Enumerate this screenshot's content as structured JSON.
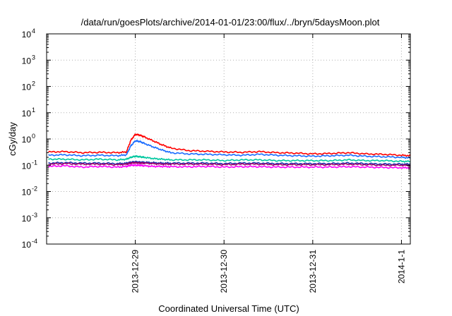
{
  "chart_data": {
    "type": "line",
    "title": "/data/run/goesPlots/archive/2014-01-01/23:00/flux/../bryn/5daysMoon.plot",
    "xlabel": "Coordinated Universal Time (UTC)",
    "ylabel": "cGy/day",
    "yscale": "log",
    "ylim": [
      0.0001,
      10000
    ],
    "xlim": [
      -1.0,
      3.1
    ],
    "grid": true,
    "x_ticks": [
      {
        "pos": 0,
        "label": "2013-12-29"
      },
      {
        "pos": 1,
        "label": "2013-12-30"
      },
      {
        "pos": 2,
        "label": "2013-12-31"
      },
      {
        "pos": 3,
        "label": "2014-1-1"
      }
    ],
    "y_ticks": [
      {
        "exp": -4,
        "base": "10",
        "sup": "-4"
      },
      {
        "exp": -3,
        "base": "10",
        "sup": "-3"
      },
      {
        "exp": -2,
        "base": "10",
        "sup": "-2"
      },
      {
        "exp": -1,
        "base": "10",
        "sup": "-1"
      },
      {
        "exp": 0,
        "base": "10",
        "sup": "0"
      },
      {
        "exp": 1,
        "base": "10",
        "sup": "1"
      },
      {
        "exp": 2,
        "base": "10",
        "sup": "2"
      },
      {
        "exp": 3,
        "base": "10",
        "sup": "3"
      },
      {
        "exp": 4,
        "base": "10",
        "sup": "4"
      }
    ],
    "x": [
      -0.98,
      -0.8,
      -0.6,
      -0.4,
      -0.2,
      -0.1,
      -0.05,
      0.0,
      0.05,
      0.1,
      0.2,
      0.3,
      0.4,
      0.6,
      0.8,
      1.0,
      1.2,
      1.4,
      1.6,
      1.8,
      2.0,
      2.2,
      2.4,
      2.6,
      2.8,
      3.0,
      3.1
    ],
    "series": [
      {
        "color": "#ff0000",
        "values": [
          0.32,
          0.33,
          0.3,
          0.31,
          0.3,
          0.32,
          0.9,
          1.5,
          1.4,
          1.2,
          0.85,
          0.6,
          0.45,
          0.36,
          0.34,
          0.32,
          0.31,
          0.33,
          0.3,
          0.29,
          0.27,
          0.28,
          0.3,
          0.27,
          0.26,
          0.24,
          0.23
        ]
      },
      {
        "color": "#1a6cff",
        "values": [
          0.24,
          0.25,
          0.23,
          0.24,
          0.23,
          0.25,
          0.55,
          0.85,
          0.8,
          0.68,
          0.5,
          0.38,
          0.3,
          0.27,
          0.26,
          0.25,
          0.24,
          0.26,
          0.24,
          0.23,
          0.22,
          0.23,
          0.24,
          0.22,
          0.21,
          0.2,
          0.19
        ]
      },
      {
        "color": "#00c8a0",
        "values": [
          0.17,
          0.17,
          0.16,
          0.17,
          0.16,
          0.17,
          0.2,
          0.22,
          0.21,
          0.2,
          0.18,
          0.17,
          0.16,
          0.16,
          0.16,
          0.15,
          0.16,
          0.16,
          0.15,
          0.15,
          0.15,
          0.15,
          0.16,
          0.15,
          0.15,
          0.14,
          0.14
        ]
      },
      {
        "color": "#1a2db0",
        "values": [
          0.12,
          0.125,
          0.12,
          0.12,
          0.115,
          0.12,
          0.13,
          0.135,
          0.13,
          0.13,
          0.125,
          0.12,
          0.12,
          0.12,
          0.12,
          0.115,
          0.12,
          0.12,
          0.115,
          0.115,
          0.115,
          0.115,
          0.12,
          0.115,
          0.11,
          0.11,
          0.11
        ]
      },
      {
        "color": "#a0006a",
        "values": [
          0.11,
          0.115,
          0.11,
          0.11,
          0.105,
          0.11,
          0.12,
          0.125,
          0.12,
          0.12,
          0.115,
          0.11,
          0.11,
          0.11,
          0.11,
          0.105,
          0.11,
          0.11,
          0.105,
          0.105,
          0.105,
          0.105,
          0.11,
          0.105,
          0.1,
          0.1,
          0.1
        ]
      },
      {
        "color": "#ff00ff",
        "values": [
          0.09,
          0.095,
          0.085,
          0.09,
          0.085,
          0.09,
          0.1,
          0.1,
          0.1,
          0.095,
          0.09,
          0.09,
          0.088,
          0.087,
          0.09,
          0.085,
          0.088,
          0.088,
          0.085,
          0.085,
          0.085,
          0.085,
          0.088,
          0.085,
          0.082,
          0.08,
          0.08
        ]
      }
    ]
  }
}
